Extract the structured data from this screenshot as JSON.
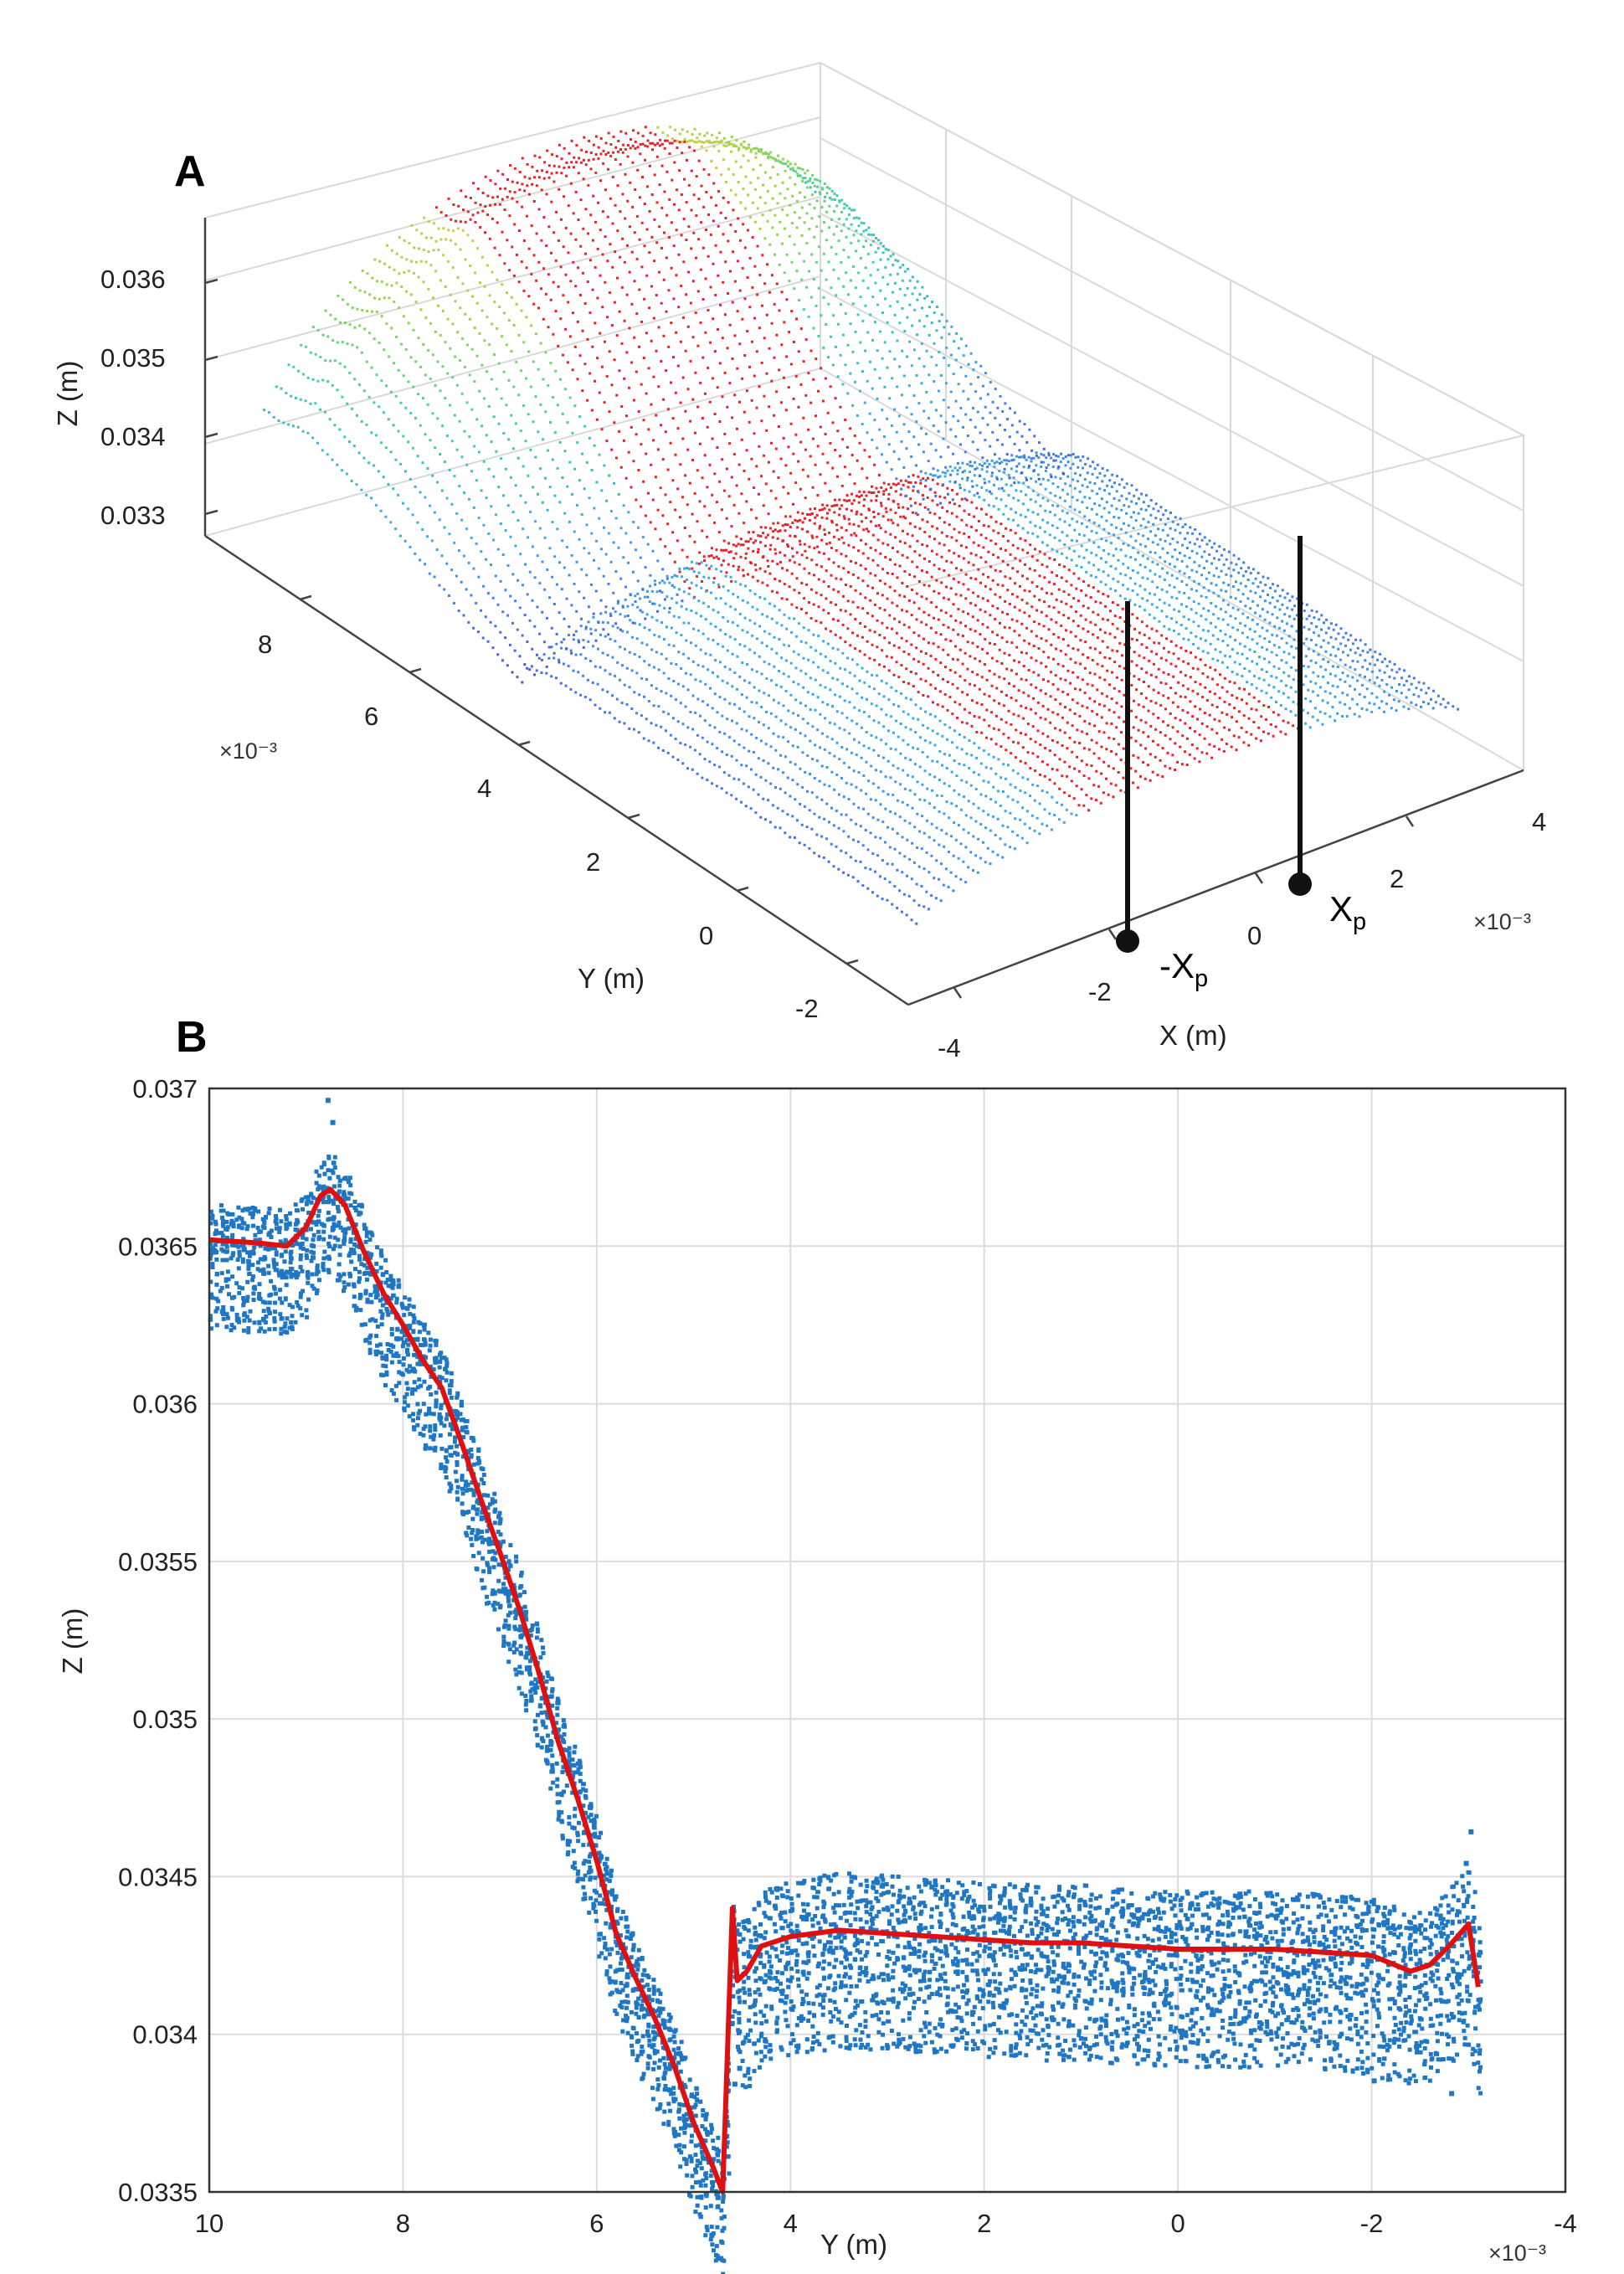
{
  "panels": {
    "a_label": "A",
    "b_label": "B"
  },
  "chart_data": [
    {
      "type": "scatter",
      "title": "",
      "panel": "A",
      "xlabel": "X (m)",
      "ylabel": "Y (m)",
      "zlabel": "Z (m)",
      "x_multiplier": "×10⁻³",
      "y_multiplier": "×10⁻³",
      "x_ticks": [
        "-4",
        "-2",
        "0",
        "2",
        "4"
      ],
      "y_ticks": [
        "8",
        "6",
        "4",
        "2",
        "0",
        "-2"
      ],
      "z_ticks": [
        "0.036",
        "0.035",
        "0.034",
        "0.033"
      ],
      "xlim": [
        -0.004,
        0.004
      ],
      "ylim": [
        -0.003,
        0.01
      ],
      "zlim": [
        0.0328,
        0.0368
      ],
      "markers": [
        {
          "label_main": "-X",
          "label_sub": "p",
          "x": -0.0015
        },
        {
          "label_main": "X",
          "label_sub": "p",
          "x": 0.0015
        }
      ],
      "series_colors": {
        "profile": "#e81e1e",
        "surface_low": "#4a4ce0",
        "surface_high": "#e8c14a"
      }
    },
    {
      "type": "scatter",
      "panel": "B",
      "title": "",
      "xlabel": "Y (m)",
      "ylabel": "Z (m)",
      "x_multiplier": "×10⁻³",
      "x_ticks": [
        "10",
        "8",
        "6",
        "4",
        "2",
        "0",
        "-2",
        "-4"
      ],
      "y_ticks": [
        "0.037",
        "0.0365",
        "0.036",
        "0.0355",
        "0.035",
        "0.0345",
        "0.034",
        "0.0335"
      ],
      "xlim": [
        10,
        -4
      ],
      "ylim": [
        0.0335,
        0.037
      ],
      "grid": true,
      "colors": {
        "points": "#1f77c4",
        "mean_line": "#e01010"
      },
      "mean_profile": {
        "x": [
          10,
          9.5,
          9.2,
          9.0,
          8.85,
          8.75,
          8.6,
          8.4,
          8.2,
          8.0,
          7.8,
          7.6,
          7.4,
          7.2,
          7.0,
          6.8,
          6.6,
          6.4,
          6.2,
          6.0,
          5.8,
          5.6,
          5.4,
          5.2,
          5.0,
          4.8,
          4.7,
          4.6,
          4.55,
          4.45,
          4.3,
          4.0,
          3.5,
          3.0,
          2.5,
          2.0,
          1.5,
          1.0,
          0.5,
          0.0,
          -0.5,
          -1.0,
          -1.5,
          -2.0,
          -2.4,
          -2.6,
          -2.8,
          -3.0,
          -3.1
        ],
        "y": [
          0.03652,
          0.03651,
          0.0365,
          0.03656,
          0.03666,
          0.03668,
          0.03663,
          0.03648,
          0.03635,
          0.03625,
          0.03614,
          0.03605,
          0.03588,
          0.0357,
          0.03553,
          0.03535,
          0.03515,
          0.03493,
          0.03475,
          0.03455,
          0.03432,
          0.03418,
          0.03405,
          0.0339,
          0.03372,
          0.03358,
          0.0335,
          0.0344,
          0.03417,
          0.0342,
          0.03428,
          0.03431,
          0.03433,
          0.03432,
          0.03431,
          0.0343,
          0.03429,
          0.03429,
          0.03428,
          0.03427,
          0.03427,
          0.03427,
          0.03426,
          0.03425,
          0.0342,
          0.03422,
          0.03428,
          0.03435,
          0.03415
        ]
      }
    }
  ]
}
